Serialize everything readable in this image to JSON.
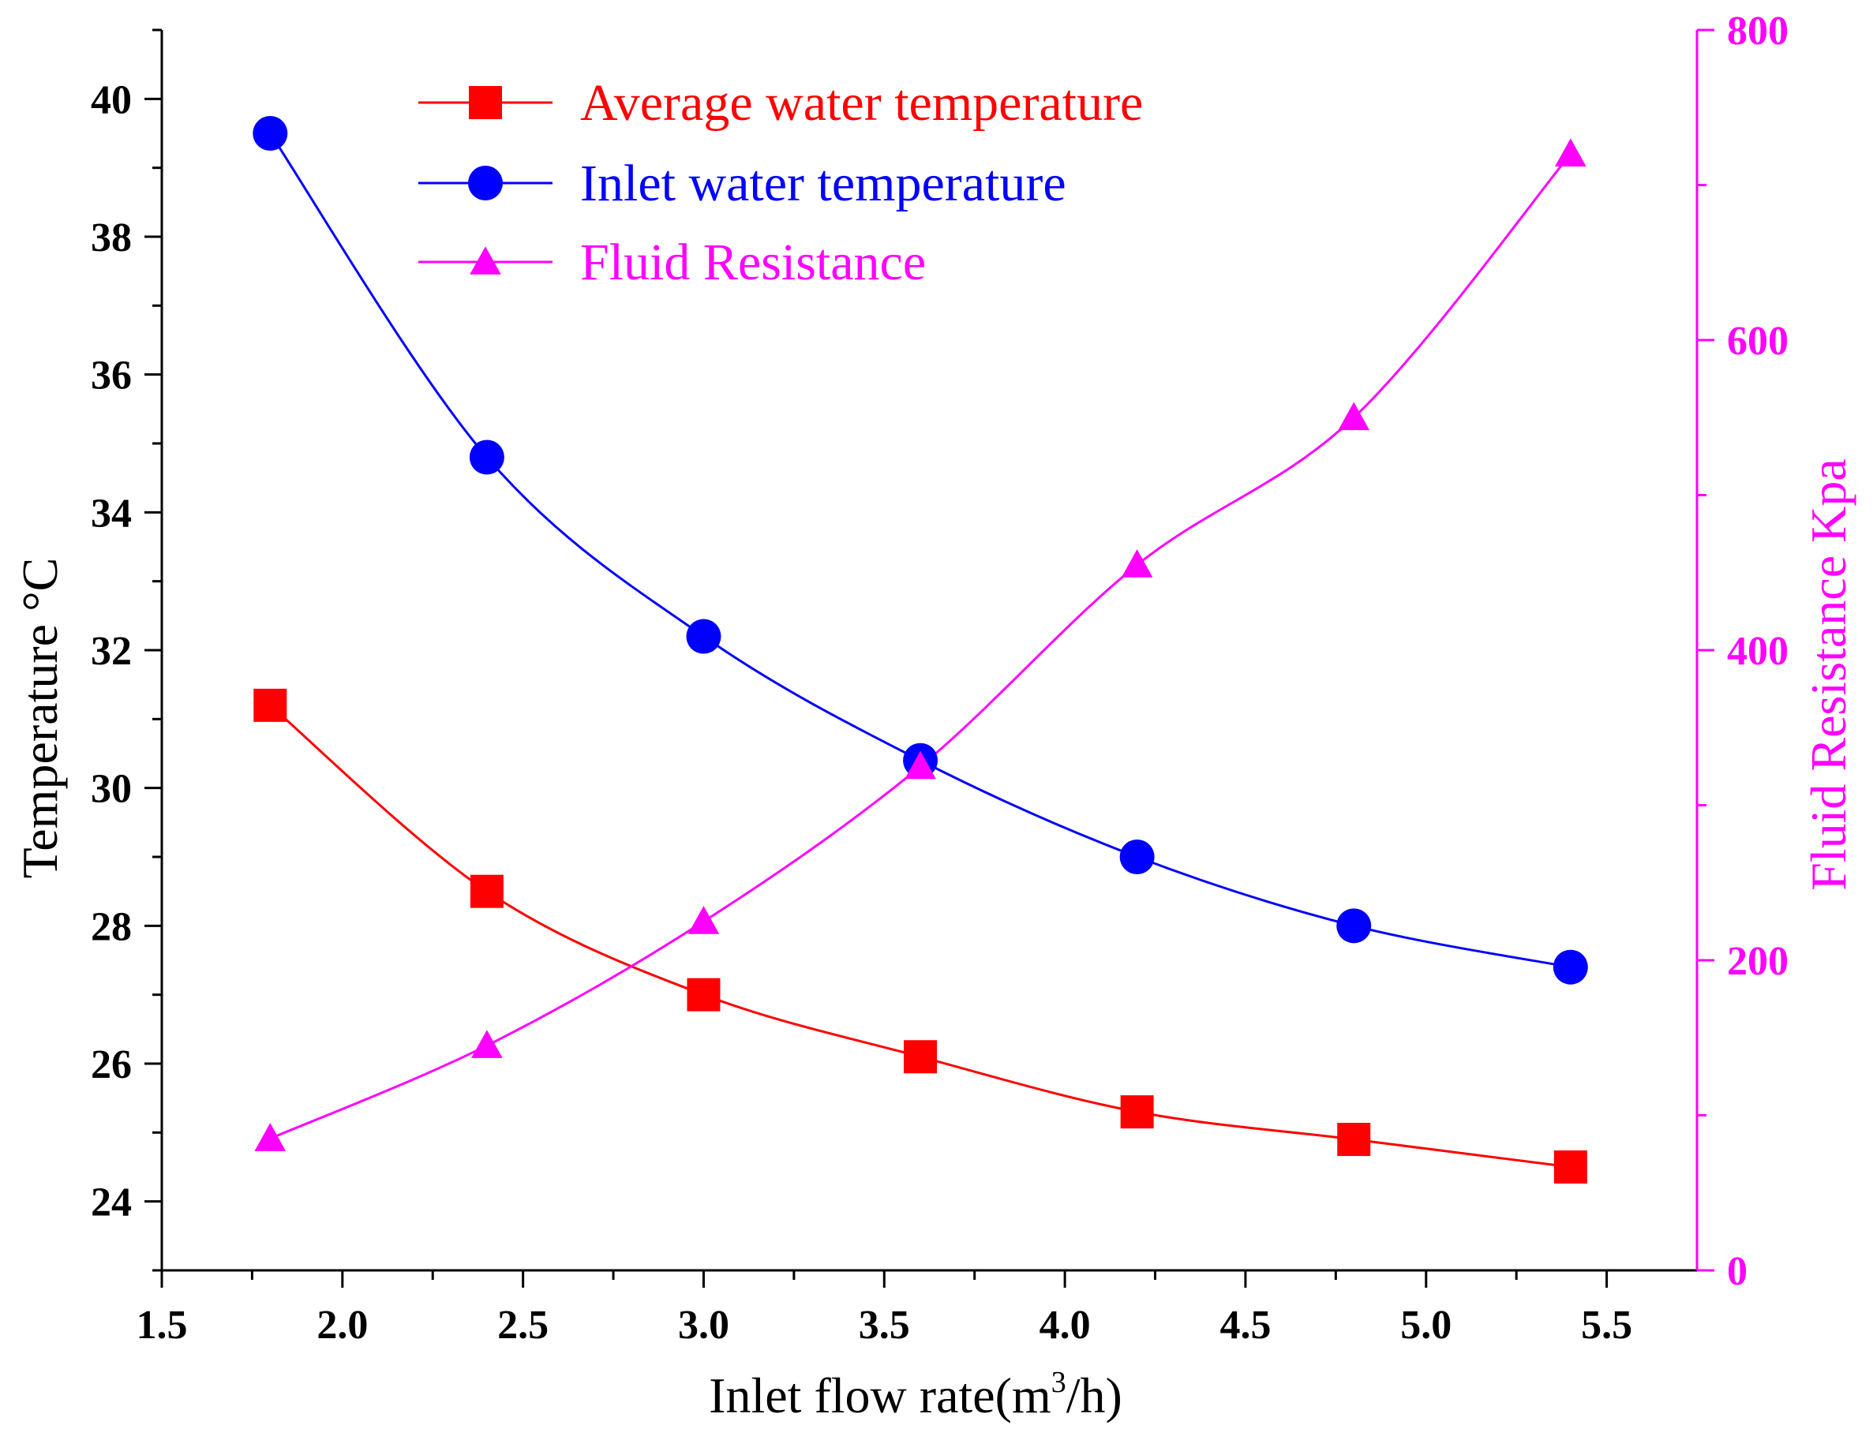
{
  "chart_data": {
    "type": "line",
    "x": [
      1.8,
      2.4,
      3.0,
      3.6,
      4.2,
      4.8,
      5.4
    ],
    "xlim": [
      1.5,
      5.75
    ],
    "xticks": [
      "1.5",
      "2.0",
      "2.5",
      "3.0",
      "3.5",
      "4.0",
      "4.5",
      "5.0",
      "5.5"
    ],
    "xlabel": {
      "main": "Inlet flow rate(m",
      "sup": "3",
      "tail": "/h)"
    },
    "y_left": {
      "label": "Temperature °C",
      "lim": [
        23,
        41
      ],
      "ticks": [
        "24",
        "26",
        "28",
        "30",
        "32",
        "34",
        "36",
        "38",
        "40"
      ]
    },
    "y_right": {
      "label": "Fluid Resistance Kpa",
      "lim": [
        0,
        800
      ],
      "ticks": [
        "0",
        "200",
        "400",
        "600",
        "800"
      ],
      "color": "#ff00ff"
    },
    "series": [
      {
        "name": "Average water temperature",
        "axis": "left",
        "marker": "square",
        "color": "#ff0000",
        "values": [
          31.2,
          28.5,
          27.0,
          26.1,
          25.3,
          24.9,
          24.5
        ]
      },
      {
        "name": "Inlet water temperature",
        "axis": "left",
        "marker": "circle",
        "color": "#0000ff",
        "values": [
          39.5,
          34.8,
          32.2,
          30.4,
          29.0,
          28.0,
          27.4
        ]
      },
      {
        "name": "Fluid Resistance",
        "axis": "right",
        "marker": "triangle",
        "color": "#ff00ff",
        "values": [
          85,
          145,
          225,
          325,
          455,
          550,
          720
        ]
      }
    ],
    "legend_position": "top-left"
  }
}
